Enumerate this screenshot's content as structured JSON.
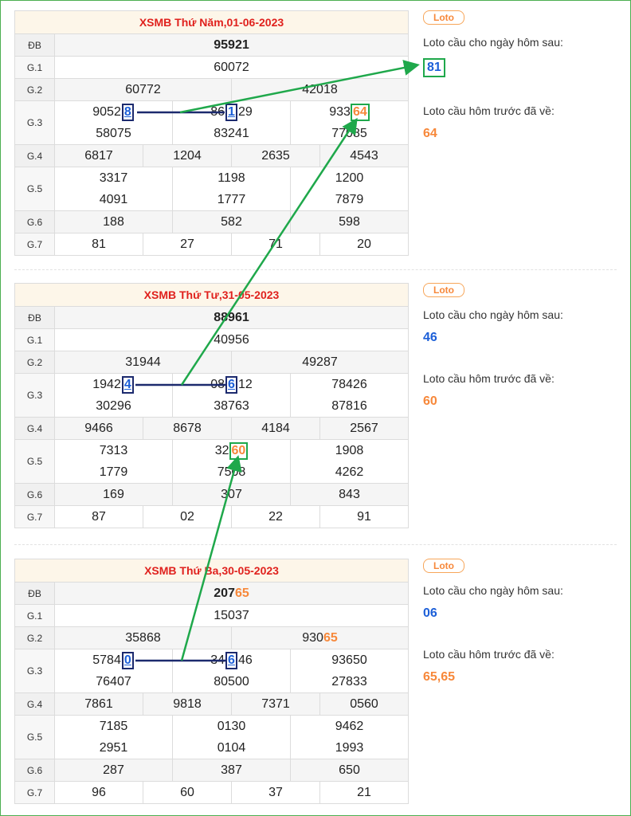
{
  "draws": [
    {
      "title": "XSMB Thứ Năm,01-06-2023",
      "labels": {
        "db": "ĐB",
        "g1": "G.1",
        "g2": "G.2",
        "g3": "G.3",
        "g4": "G.4",
        "g5": "G.5",
        "g6": "G.6",
        "g7": "G.7"
      },
      "db": "95921",
      "g1": "60072",
      "g2": [
        "60772",
        "42018"
      ],
      "g3": {
        "a1_pre": "9052",
        "a1_hl": "8",
        "a2_pre": "86",
        "a2_hl": "1",
        "a2_post": "29",
        "a3_pre": "933",
        "a3_hl": "64",
        "b1": "58075",
        "b2": "83241",
        "b3": "77085"
      },
      "g4": [
        "6817",
        "1204",
        "2635",
        "4543"
      ],
      "g5": [
        "3317",
        "1198",
        "1200",
        "4091",
        "1777",
        "7879"
      ],
      "g6": [
        "188",
        "582",
        "598"
      ],
      "g7": [
        "81",
        "27",
        "71",
        "20"
      ],
      "side": {
        "badge": "Loto",
        "next_label": "Loto cầu cho ngày hôm sau:",
        "next_value": "81",
        "prev_label": "Loto cầu hôm trước đã về:",
        "prev_value": "64"
      }
    },
    {
      "title": "XSMB Thứ Tư,31-05-2023",
      "labels": {
        "db": "ĐB",
        "g1": "G.1",
        "g2": "G.2",
        "g3": "G.3",
        "g4": "G.4",
        "g5": "G.5",
        "g6": "G.6",
        "g7": "G.7"
      },
      "db": "88961",
      "g1": "40956",
      "g2": [
        "31944",
        "49287"
      ],
      "g3": {
        "a1_pre": "1942",
        "a1_hl": "4",
        "a2_pre": "08",
        "a2_hl": "6",
        "a2_post": "12",
        "a3": "78426",
        "b1": "30296",
        "b2": "38763",
        "b3": "87816"
      },
      "g4": [
        "9466",
        "8678",
        "4184",
        "2567"
      ],
      "g5": {
        "r1c1": "7313",
        "r1c2_pre": "32",
        "r1c2_hl": "60",
        "r1c3": "1908",
        "r2c1": "1779",
        "r2c2": "7508",
        "r2c3": "4262"
      },
      "g6": [
        "169",
        "307",
        "843"
      ],
      "g7": [
        "87",
        "02",
        "22",
        "91"
      ],
      "side": {
        "badge": "Loto",
        "next_label": "Loto cầu cho ngày hôm sau:",
        "next_value": "46",
        "prev_label": "Loto cầu hôm trước đã về:",
        "prev_value": "60"
      }
    },
    {
      "title": "XSMB Thứ Ba,30-05-2023",
      "labels": {
        "db": "ĐB",
        "g1": "G.1",
        "g2": "G.2",
        "g3": "G.3",
        "g4": "G.4",
        "g5": "G.5",
        "g6": "G.6",
        "g7": "G.7"
      },
      "db_pre": "207",
      "db_hl": "65",
      "g1": "15037",
      "g2": {
        "c1": "35868",
        "c2_pre": "930",
        "c2_hl": "65"
      },
      "g3": {
        "a1_pre": "5784",
        "a1_hl": "0",
        "a2_pre": "34",
        "a2_hl": "6",
        "a2_post": "46",
        "a3": "93650",
        "b1": "76407",
        "b2": "80500",
        "b3": "27833"
      },
      "g4": [
        "7861",
        "9818",
        "7371",
        "0560"
      ],
      "g5": [
        "7185",
        "0130",
        "9462",
        "2951",
        "0104",
        "1993"
      ],
      "g6": [
        "287",
        "387",
        "650"
      ],
      "g7": [
        "96",
        "60",
        "37",
        "21"
      ],
      "side": {
        "badge": "Loto",
        "next_label": "Loto cầu cho ngày hôm sau:",
        "next_value": "06",
        "prev_label": "Loto cầu hôm trước đã về:",
        "prev_value": "65,65"
      }
    }
  ],
  "colors": {
    "title_red": "#e0211d",
    "loto_orange": "#f7883a",
    "loto_blue": "#1c5fd8",
    "arrow_green": "#1fa84b",
    "line_navy": "#1c2a6e"
  }
}
